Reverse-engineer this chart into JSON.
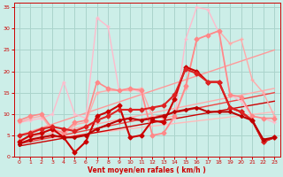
{
  "bg_color": "#cceee8",
  "grid_color": "#aad4cc",
  "xlabel": "Vent moyen/en rafales ( km/h )",
  "xlabel_color": "#cc0000",
  "tick_color": "#cc0000",
  "xlim": [
    -0.5,
    23.5
  ],
  "ylim": [
    0,
    36
  ],
  "yticks": [
    0,
    5,
    10,
    15,
    20,
    25,
    30,
    35
  ],
  "xticks": [
    0,
    1,
    2,
    3,
    4,
    5,
    6,
    7,
    8,
    9,
    10,
    11,
    12,
    13,
    14,
    15,
    16,
    17,
    18,
    19,
    20,
    21,
    22,
    23
  ],
  "lines": [
    {
      "x": [
        0,
        23
      ],
      "y": [
        3.5,
        10.5
      ],
      "color": "#ffbbbb",
      "lw": 1.0,
      "marker": null,
      "ms": 0
    },
    {
      "x": [
        0,
        23
      ],
      "y": [
        4.0,
        16.0
      ],
      "color": "#ffaaaa",
      "lw": 1.0,
      "marker": null,
      "ms": 0
    },
    {
      "x": [
        0,
        23
      ],
      "y": [
        5.0,
        25.0
      ],
      "color": "#ff9999",
      "lw": 1.0,
      "marker": null,
      "ms": 0
    },
    {
      "x": [
        0,
        23
      ],
      "y": [
        3.0,
        15.0
      ],
      "color": "#ee4444",
      "lw": 1.0,
      "marker": null,
      "ms": 0
    },
    {
      "x": [
        0,
        23
      ],
      "y": [
        2.5,
        13.0
      ],
      "color": "#cc0000",
      "lw": 1.0,
      "marker": null,
      "ms": 0
    },
    {
      "x": [
        0,
        1,
        2,
        3,
        4,
        5,
        6,
        7,
        8,
        9,
        10,
        11,
        12,
        13,
        14,
        15,
        16,
        17,
        18,
        19,
        20,
        21,
        22,
        23
      ],
      "y": [
        8.0,
        8.5,
        9.0,
        10.0,
        17.5,
        10.0,
        9.0,
        32.5,
        30.5,
        15.5,
        16.0,
        15.0,
        5.0,
        5.5,
        9.0,
        27.5,
        35.0,
        34.5,
        29.0,
        14.5,
        13.0,
        9.5,
        9.0,
        8.0
      ],
      "color": "#ffbbcc",
      "lw": 1.0,
      "marker": "+",
      "ms": 3.5
    },
    {
      "x": [
        0,
        1,
        2,
        3,
        4,
        5,
        6,
        7,
        8,
        9,
        10,
        11,
        12,
        13,
        14,
        15,
        16,
        17,
        18,
        19,
        20,
        21,
        22,
        23
      ],
      "y": [
        8.0,
        9.0,
        9.5,
        6.0,
        5.0,
        7.5,
        8.0,
        15.0,
        15.5,
        15.5,
        15.5,
        16.0,
        9.5,
        9.0,
        9.5,
        16.0,
        27.5,
        28.5,
        29.5,
        26.5,
        27.5,
        18.0,
        15.0,
        9.5
      ],
      "color": "#ffaaaa",
      "lw": 1.0,
      "marker": "+",
      "ms": 3.5
    },
    {
      "x": [
        0,
        1,
        2,
        3,
        4,
        5,
        6,
        7,
        8,
        9,
        10,
        11,
        12,
        13,
        14,
        15,
        16,
        17,
        18,
        19,
        20,
        21,
        22,
        23
      ],
      "y": [
        8.5,
        9.5,
        10.0,
        6.5,
        5.5,
        8.0,
        8.5,
        17.5,
        16.0,
        15.5,
        16.0,
        15.5,
        5.0,
        5.5,
        9.5,
        16.5,
        27.5,
        28.5,
        29.5,
        14.5,
        14.0,
        9.5,
        9.0,
        9.0
      ],
      "color": "#ff8888",
      "lw": 1.2,
      "marker": "D",
      "ms": 2.5
    },
    {
      "x": [
        0,
        1,
        2,
        3,
        4,
        5,
        6,
        7,
        8,
        9,
        10,
        11,
        12,
        13,
        14,
        15,
        16,
        17,
        18,
        19,
        20,
        21,
        22,
        23
      ],
      "y": [
        3.5,
        5.0,
        5.5,
        6.5,
        4.5,
        1.0,
        3.5,
        9.5,
        10.5,
        12.0,
        4.5,
        5.0,
        8.5,
        8.0,
        13.5,
        21.0,
        20.0,
        17.5,
        17.5,
        11.5,
        10.5,
        8.5,
        3.5,
        4.5
      ],
      "color": "#cc0000",
      "lw": 1.5,
      "marker": "D",
      "ms": 2.5
    },
    {
      "x": [
        0,
        1,
        2,
        3,
        4,
        5,
        6,
        7,
        8,
        9,
        10,
        11,
        12,
        13,
        14,
        15,
        16,
        17,
        18,
        19,
        20,
        21,
        22,
        23
      ],
      "y": [
        5.0,
        5.5,
        6.5,
        7.0,
        6.5,
        6.0,
        7.0,
        8.5,
        9.5,
        11.0,
        11.0,
        11.0,
        11.5,
        12.0,
        14.5,
        20.5,
        19.5,
        17.5,
        17.5,
        11.5,
        10.5,
        8.5,
        3.5,
        4.5
      ],
      "color": "#dd2222",
      "lw": 1.5,
      "marker": "D",
      "ms": 2.5
    },
    {
      "x": [
        0,
        1,
        2,
        3,
        4,
        5,
        6,
        7,
        8,
        9,
        10,
        11,
        12,
        13,
        14,
        15,
        16,
        17,
        18,
        19,
        20,
        21,
        22,
        23
      ],
      "y": [
        3.0,
        4.0,
        4.5,
        5.0,
        4.5,
        4.5,
        5.0,
        6.5,
        7.5,
        8.5,
        9.0,
        8.5,
        9.0,
        9.5,
        10.5,
        11.0,
        11.5,
        10.5,
        10.5,
        10.5,
        9.5,
        8.5,
        4.0,
        4.5
      ],
      "color": "#bb0000",
      "lw": 1.5,
      "marker": "D",
      "ms": 2.0
    }
  ]
}
